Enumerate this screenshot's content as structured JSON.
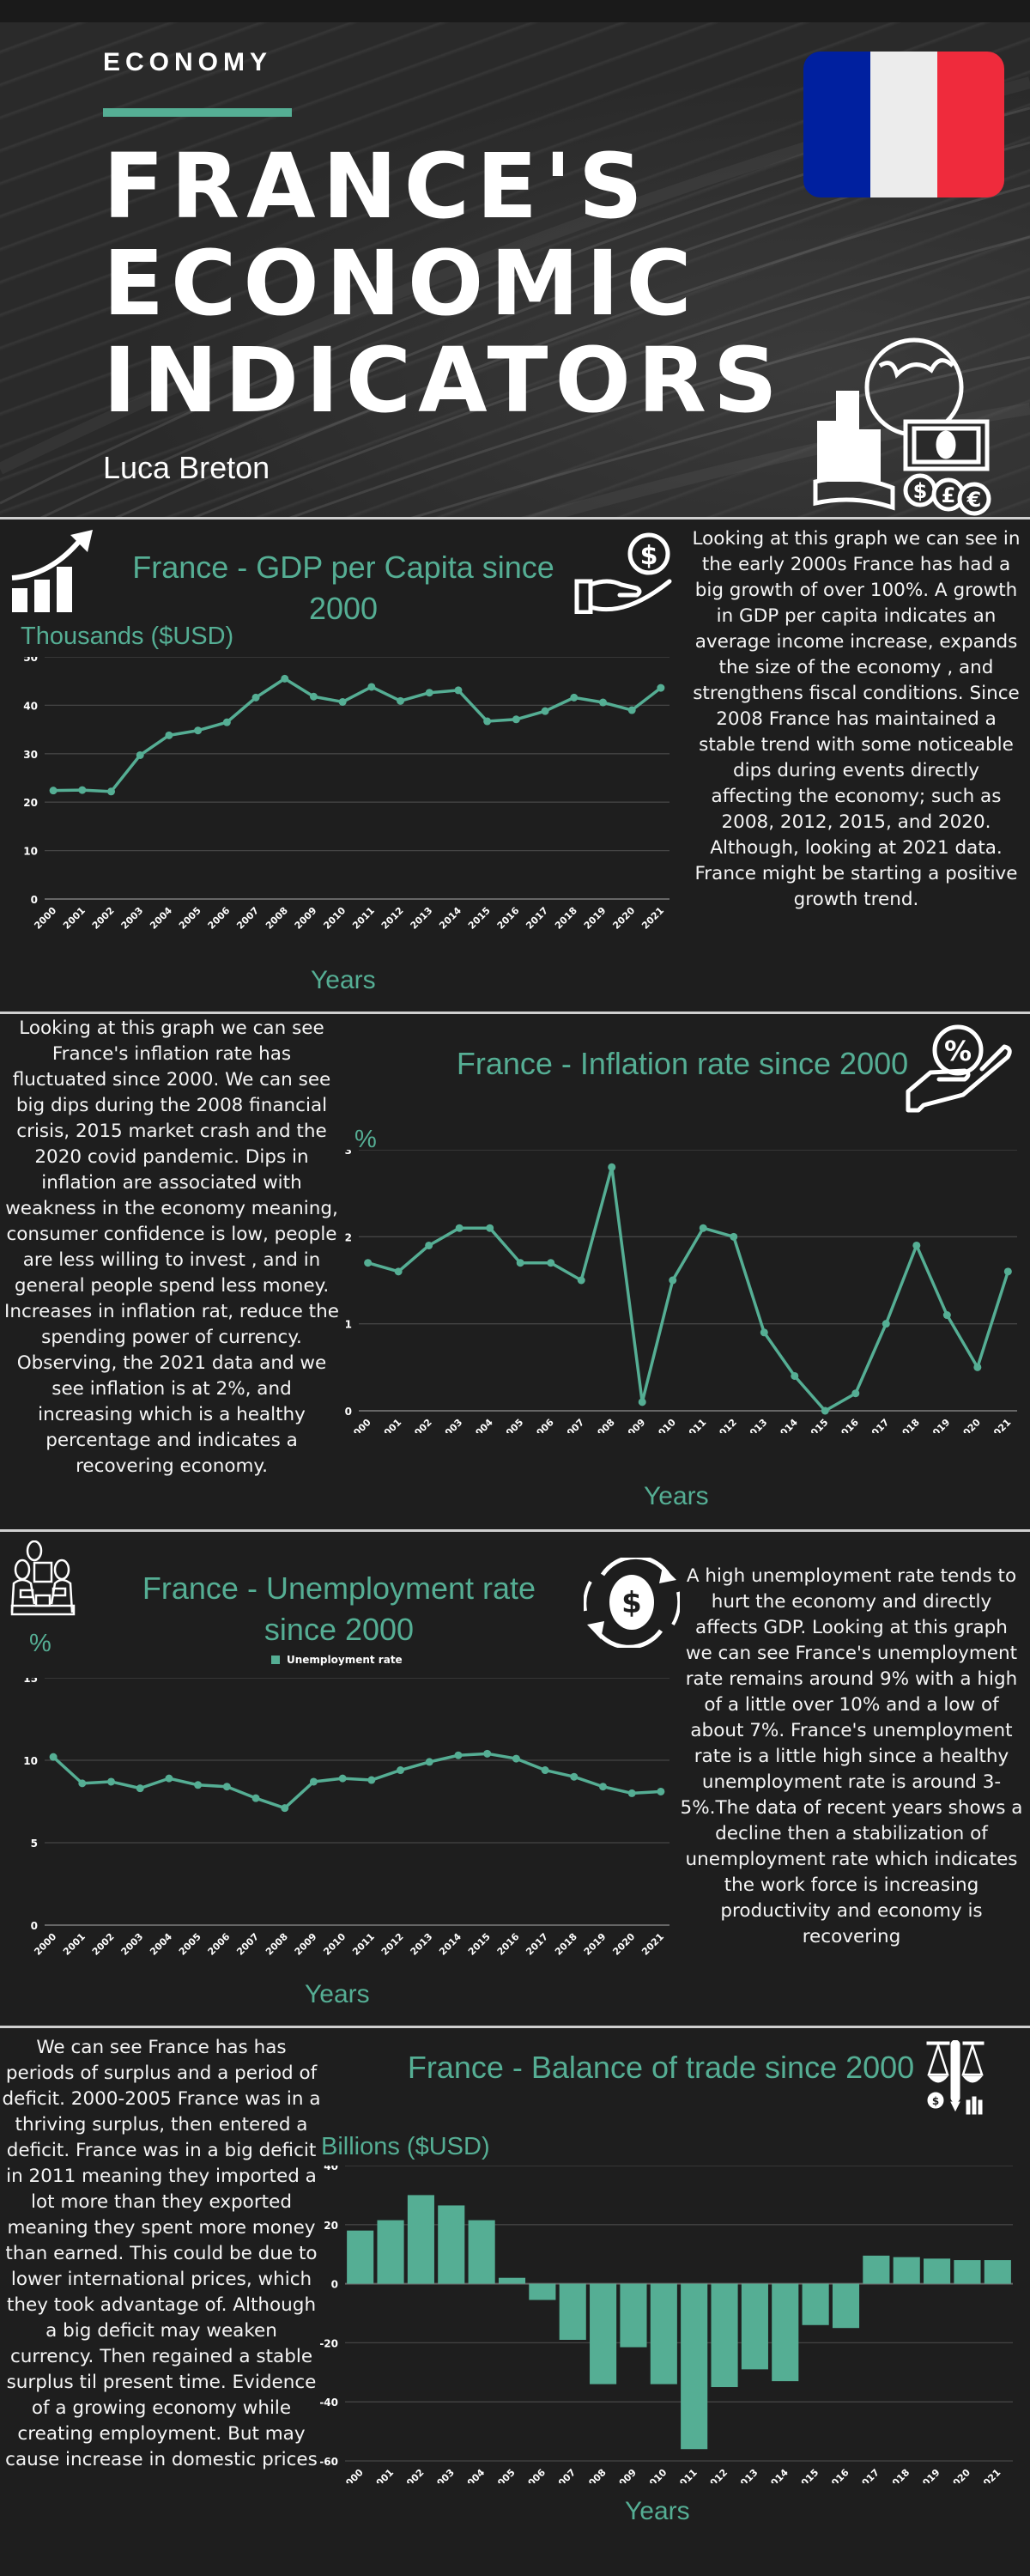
{
  "hero": {
    "kicker": "ECONOMY",
    "title_lines": [
      "FRANCE'S",
      "ECONOMIC",
      "INDICATORS"
    ],
    "author": "Luca Breton",
    "flag_colors": [
      "#00209f",
      "#ececec",
      "#ef2b3c"
    ]
  },
  "colors": {
    "accent": "#55ae94",
    "background": "#1e1e1e",
    "grid": "#444444",
    "text": "#ffffff"
  },
  "sections": {
    "gdp": {
      "title": "France - GDP per Capita since 2000",
      "unit_label": "Thousands ($USD)",
      "x_label": "Years",
      "description": "Looking at this graph we  can see in the early 2000s France has had a big growth of over 100%. A growth in GDP per capita indicates an average income increase, expands the size of the economy , and strengthens fiscal  conditions. Since 2008 France has maintained a stable trend with some noticeable dips during events directly affecting the economy; such as 2008, 2012, 2015, and 2020. Although, looking at 2021 data. France might be starting a positive growth trend."
    },
    "inflation": {
      "title": "France - Inflation rate since 2000",
      "unit_label": "%",
      "x_label": "Years",
      "description": "Looking at this graph we can see France's inflation rate has fluctuated since 2000. We can see big dips during the 2008 financial crisis, 2015 market crash and the 2020 covid pandemic. Dips in inflation are associated with weakness in the economy meaning, consumer confidence is low, people are less willing to invest , and in general people spend less money. Increases in inflation rat, reduce the spending power of currency. Observing, the 2021 data and we see inflation is at 2%, and increasing which is a healthy percentage and indicates a recovering economy."
    },
    "unemployment": {
      "title": "France - Unemployment rate since 2000",
      "unit_label": "%",
      "x_label": "Years",
      "legend": "Unemployment rate",
      "description": "A high unemployment rate tends to hurt the economy and directly affects GDP. Looking at this graph we can see France's unemployment rate remains around 9% with a high of a little over 10% and a low of about 7%. France's unemployment rate is a little high since a healthy unemployment rate is around 3-5%.The data of recent years shows a decline then a stabilization of unemployment rate which indicates the work force is increasing productivity and economy is recovering"
    },
    "trade": {
      "title": "France - Balance of trade since 2000",
      "unit_label": "Billions ($USD)",
      "x_label": "Years",
      "description": "We can see France has has periods of surplus and a period of deficit. 2000-2005 France was in a thriving surplus, then entered a deficit. France  was in a big deficit in  2011 meaning they imported a lot more than they exported meaning they spent more money than earned. This could be due to lower international prices, which they took advantage of. Although a big deficit may weaken currency. Then regained a stable surplus til present time. Evidence of a growing economy while creating employment. But may cause increase in domestic prices"
    }
  },
  "chart_data": [
    {
      "type": "line",
      "title": "France - GDP per Capita since 2000",
      "xlabel": "Years",
      "ylabel": "Thousands ($USD)",
      "categories": [
        "2000",
        "2001",
        "2002",
        "2003",
        "2004",
        "2005",
        "2006",
        "2007",
        "2008",
        "2009",
        "2010",
        "2011",
        "2012",
        "2013",
        "2014",
        "2015",
        "2016",
        "2017",
        "2018",
        "2019",
        "2020",
        "2021"
      ],
      "values": [
        22.4,
        22.5,
        22.2,
        29.7,
        33.8,
        34.8,
        36.5,
        41.6,
        45.5,
        41.8,
        40.7,
        43.8,
        40.9,
        42.6,
        43.1,
        36.7,
        37.1,
        38.8,
        41.6,
        40.6,
        39.0,
        43.6
      ],
      "yticks": [
        0,
        10,
        20,
        30,
        40,
        50
      ],
      "ylim": [
        0,
        50
      ],
      "grid": true,
      "legend": null
    },
    {
      "type": "line",
      "title": "France - Inflation rate since 2000",
      "xlabel": "Years",
      "ylabel": "%",
      "categories": [
        "2000",
        "2001",
        "2002",
        "2003",
        "2004",
        "2005",
        "2006",
        "2007",
        "2008",
        "2009",
        "2010",
        "2011",
        "2012",
        "2013",
        "2014",
        "2015",
        "2016",
        "2017",
        "2018",
        "2019",
        "2020",
        "2021"
      ],
      "values": [
        1.7,
        1.6,
        1.9,
        2.1,
        2.1,
        1.7,
        1.7,
        1.5,
        2.8,
        0.1,
        1.5,
        2.1,
        2.0,
        0.9,
        0.4,
        0.0,
        0.2,
        1.0,
        1.9,
        1.1,
        0.5,
        1.6
      ],
      "yticks": [
        0,
        1,
        2,
        3
      ],
      "ylim": [
        0,
        3
      ],
      "grid": true,
      "legend": null
    },
    {
      "type": "line",
      "title": "France - Unemployment rate since 2000",
      "xlabel": "Years",
      "ylabel": "%",
      "categories": [
        "2000",
        "2001",
        "2002",
        "2003",
        "2004",
        "2005",
        "2006",
        "2007",
        "2008",
        "2009",
        "2010",
        "2011",
        "2012",
        "2013",
        "2014",
        "2015",
        "2016",
        "2017",
        "2018",
        "2019",
        "2020",
        "2021"
      ],
      "series": [
        {
          "name": "Unemployment rate",
          "values": [
            10.2,
            8.6,
            8.7,
            8.3,
            8.9,
            8.5,
            8.4,
            7.7,
            7.1,
            8.7,
            8.9,
            8.8,
            9.4,
            9.9,
            10.3,
            10.4,
            10.1,
            9.4,
            9.0,
            8.4,
            8.0,
            8.1
          ]
        }
      ],
      "yticks": [
        0,
        5,
        10,
        15
      ],
      "ylim": [
        0,
        15
      ],
      "grid": true,
      "legend": "top-center"
    },
    {
      "type": "bar",
      "title": "France - Balance of trade since 2000",
      "xlabel": "Years",
      "ylabel": "Billions ($USD)",
      "categories": [
        "2000",
        "2001",
        "2002",
        "2003",
        "2004",
        "2005",
        "2006",
        "2007",
        "2008",
        "2009",
        "2010",
        "2011",
        "2012",
        "2013",
        "2014",
        "2015",
        "2016",
        "2017",
        "2018",
        "2019",
        "2020",
        "2021"
      ],
      "values": [
        18,
        21.5,
        30,
        26.5,
        21.5,
        2,
        -5.5,
        -19,
        -34,
        -21.5,
        -34,
        -56,
        -35,
        -29,
        -33,
        -14,
        -15,
        9.5,
        9,
        8.5,
        8,
        8
      ],
      "yticks": [
        -60,
        -40,
        -20,
        0,
        20,
        40
      ],
      "ylim": [
        -60,
        40
      ],
      "grid": true,
      "legend": null
    }
  ]
}
